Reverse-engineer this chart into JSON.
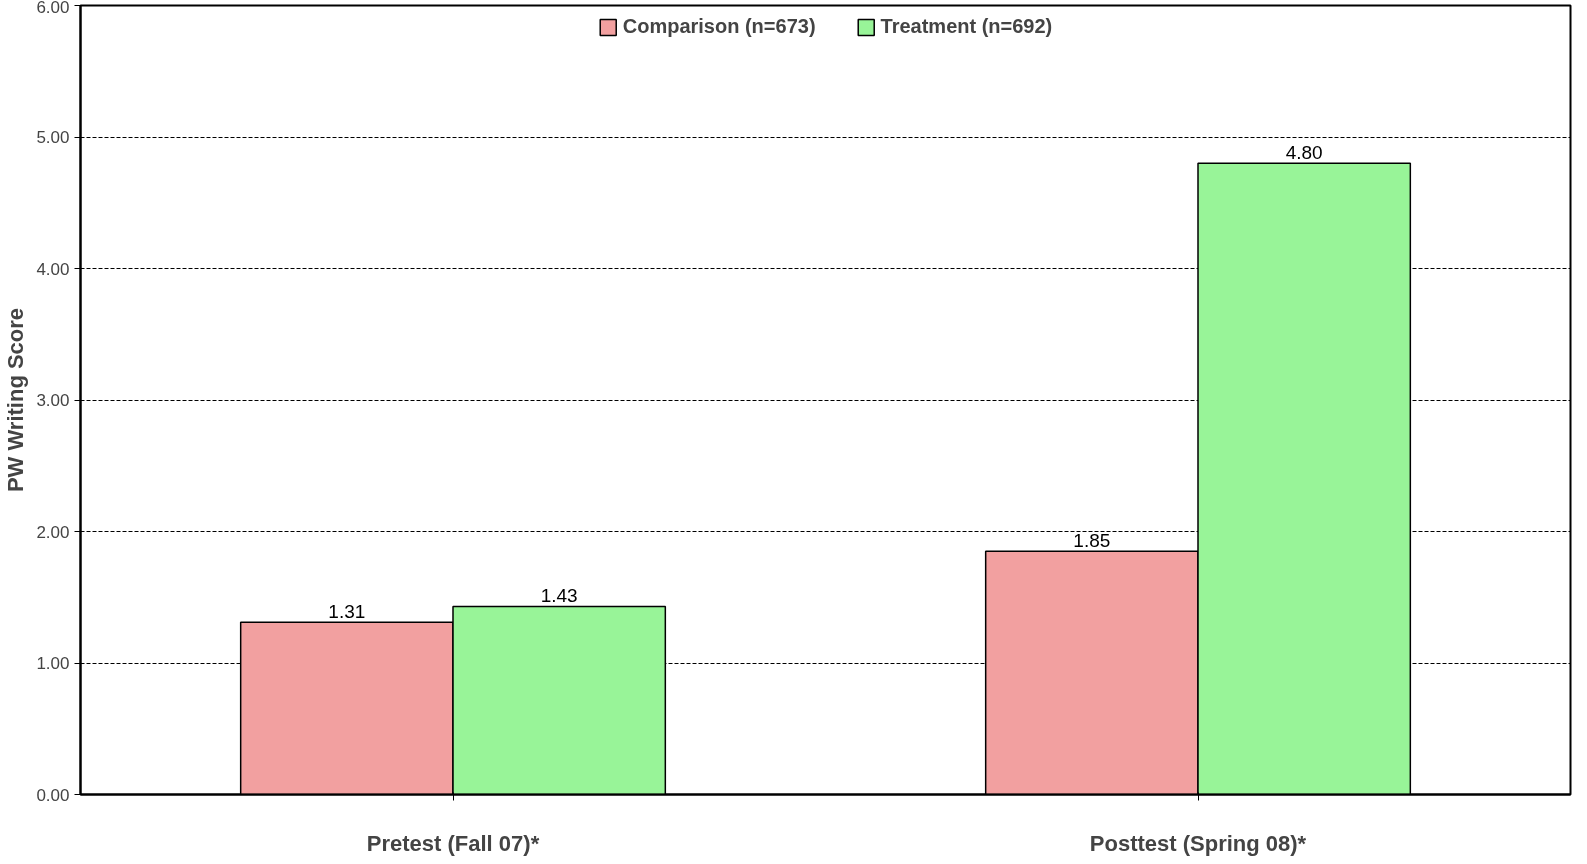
{
  "chart_data": {
    "type": "bar",
    "ylabel": "PW Writing Score",
    "categories": [
      "Pretest (Fall 07)*",
      "Posttest (Spring 08)*"
    ],
    "series": [
      {
        "name": "Comparison (n=673)",
        "color": "#f2a0a0",
        "values": [
          1.31,
          1.85
        ],
        "value_labels": [
          "1.31",
          "1.85"
        ]
      },
      {
        "name": "Treatment (n=692)",
        "color": "#98f498",
        "values": [
          1.43,
          4.8
        ],
        "value_labels": [
          "1.43",
          "4.80"
        ]
      }
    ],
    "ylim": [
      0,
      6
    ],
    "yticks": [
      {
        "value": 0,
        "label": "0.00"
      },
      {
        "value": 1,
        "label": "1.00"
      },
      {
        "value": 2,
        "label": "2.00"
      },
      {
        "value": 3,
        "label": "3.00"
      },
      {
        "value": 4,
        "label": "4.00"
      },
      {
        "value": 5,
        "label": "5.00"
      },
      {
        "value": 6,
        "label": "6.00"
      }
    ],
    "grid": "y",
    "legend": "top"
  }
}
